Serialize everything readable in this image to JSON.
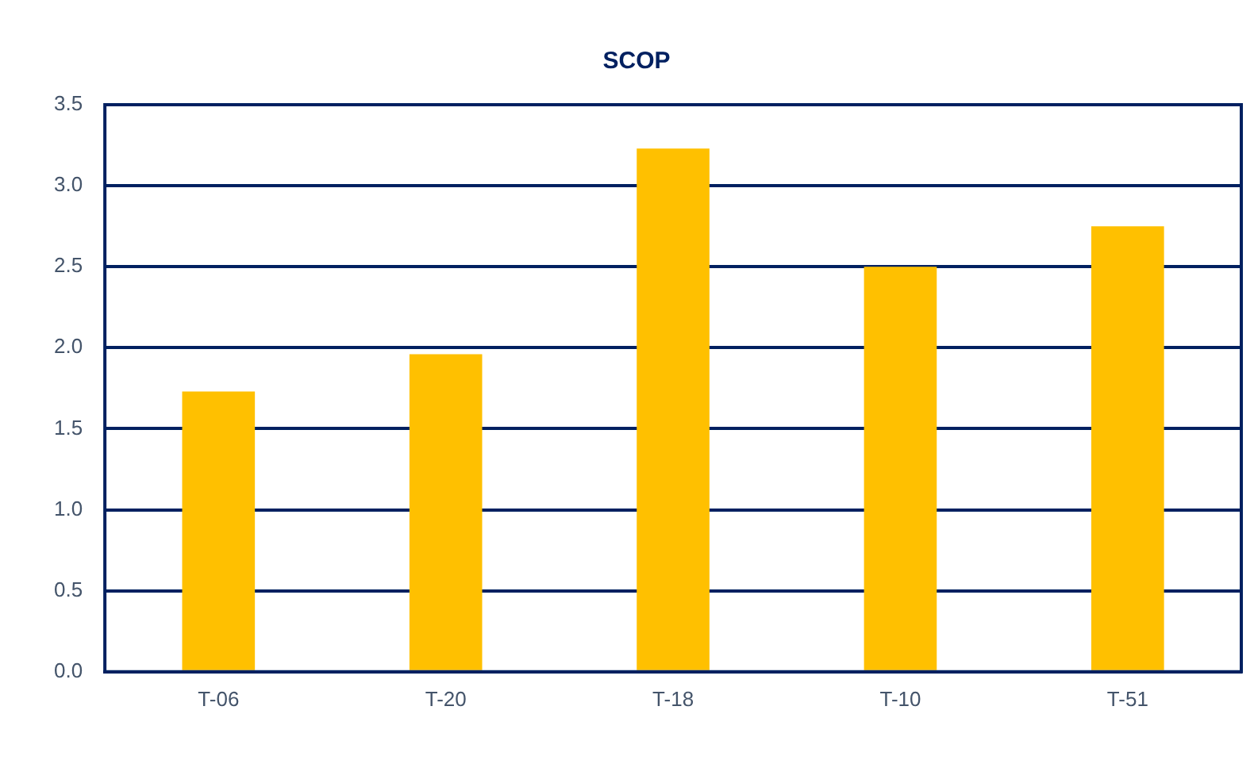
{
  "chart_data": {
    "type": "bar",
    "title": "SCOP",
    "categories": [
      "T-06",
      "T-20",
      "T-18",
      "T-10",
      "T-51"
    ],
    "values": [
      1.73,
      1.96,
      3.23,
      2.5,
      2.75
    ],
    "color": "#ffc000",
    "ylim": [
      0,
      3.5
    ],
    "yticks": [
      {
        "value": 0,
        "label": "0.0"
      },
      {
        "value": 0.5,
        "label": "0.5"
      },
      {
        "value": 1,
        "label": "1.0"
      },
      {
        "value": 1.5,
        "label": "1.5"
      },
      {
        "value": 2,
        "label": "2.0"
      },
      {
        "value": 2.5,
        "label": "2.5"
      },
      {
        "value": 3,
        "label": "3.0"
      },
      {
        "value": 3.5,
        "label": "3.5"
      }
    ],
    "grid": "y",
    "legend": false
  }
}
